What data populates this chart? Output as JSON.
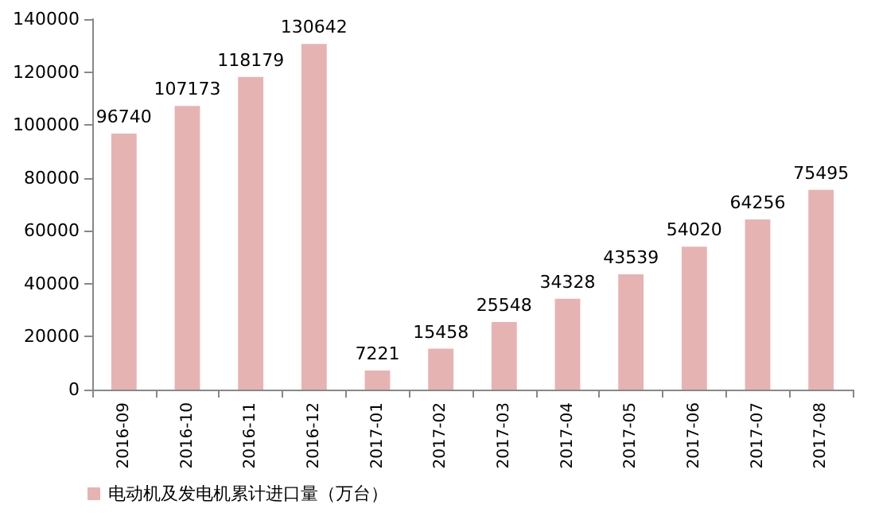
{
  "chart_data": {
    "type": "bar",
    "categories": [
      "2016-09",
      "2016-10",
      "2016-11",
      "2016-12",
      "2017-01",
      "2017-02",
      "2017-03",
      "2017-04",
      "2017-05",
      "2017-06",
      "2017-07",
      "2017-08"
    ],
    "series": [
      {
        "name": "电动机及发电机累计进口量（万台）",
        "color": "#e6b3b3",
        "values": [
          96740,
          107173,
          118179,
          130642,
          7221,
          15458,
          25548,
          34328,
          43539,
          54020,
          64256,
          75495
        ]
      }
    ],
    "ylim": [
      0,
      140000
    ],
    "yticks": [
      0,
      20000,
      40000,
      60000,
      80000,
      100000,
      120000,
      140000
    ],
    "data_labels": true,
    "legend": "bottom left",
    "grid": false
  }
}
